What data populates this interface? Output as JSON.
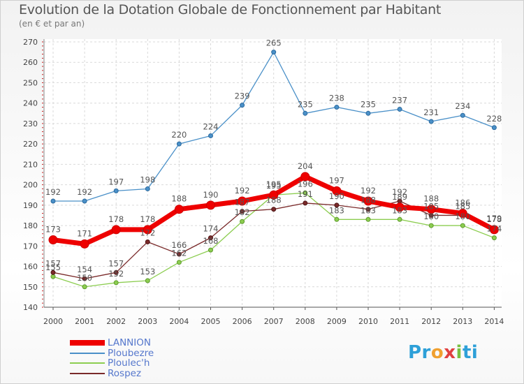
{
  "title": "Evolution de la Dotation Globale de Fonctionnement par Habitant",
  "subtitle": "(en € et par an)",
  "logo": "Proxiti",
  "chart_data": {
    "type": "line",
    "title": "Evolution de la Dotation Globale de Fonctionnement par Habitant",
    "subtitle": "(en € et par an)",
    "xlabel": "",
    "ylabel": "",
    "x": [
      2000,
      2001,
      2002,
      2003,
      2004,
      2005,
      2006,
      2007,
      2008,
      2009,
      2010,
      2011,
      2012,
      2013,
      2014
    ],
    "ylim": [
      140,
      270
    ],
    "yticks": [
      140,
      150,
      160,
      170,
      180,
      190,
      200,
      210,
      220,
      230,
      240,
      250,
      260,
      270
    ],
    "grid": true,
    "legend_position": "bottom-left",
    "series": [
      {
        "name": "Ploubezre",
        "color": "#4a90c8",
        "values": [
          192,
          192,
          197,
          198,
          220,
          224,
          239,
          265,
          235,
          238,
          235,
          237,
          231,
          234,
          228
        ]
      },
      {
        "name": "Ploulec'h",
        "color": "#8ccd50",
        "values": [
          155,
          150,
          152,
          153,
          162,
          168,
          182,
          195,
          196,
          183,
          183,
          183,
          180,
          180,
          174
        ]
      },
      {
        "name": "Rospez",
        "color": "#7a2a2a",
        "values": [
          157,
          154,
          157,
          172,
          166,
          174,
          187,
          188,
          191,
          190,
          188,
          192,
          185,
          185,
          179
        ]
      },
      {
        "name": "LANNION",
        "color": "#ee0000",
        "values": [
          173,
          171,
          178,
          178,
          188,
          190,
          192,
          195,
          204,
          197,
          192,
          189,
          188,
          186,
          178
        ]
      }
    ]
  }
}
